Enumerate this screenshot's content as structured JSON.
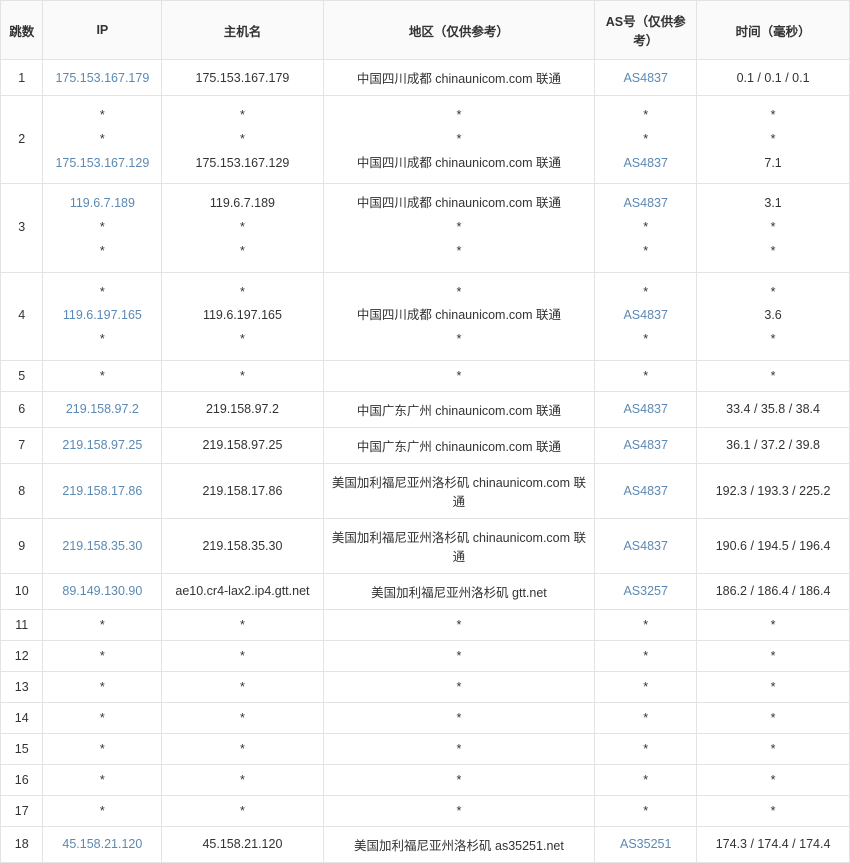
{
  "columns": {
    "hop": "跳数",
    "ip": "IP",
    "host": "主机名",
    "region": "地区（仅供参考）",
    "as": "AS号（仅供参考）",
    "time": "时间（毫秒）"
  },
  "rows": [
    {
      "hop": "1",
      "lines": [
        {
          "ip": "175.153.167.179",
          "ip_link": true,
          "host": "175.153.167.179",
          "region": "中国四川成都 chinaunicom.com 联通",
          "as": "AS4837",
          "as_link": true,
          "time": "0.1 / 0.1 / 0.1"
        }
      ]
    },
    {
      "hop": "2",
      "lines": [
        {
          "ip": "*",
          "ip_link": false,
          "host": "*",
          "region": "*",
          "as": "*",
          "as_link": false,
          "time": "*"
        },
        {
          "ip": "*",
          "ip_link": false,
          "host": "*",
          "region": "*",
          "as": "*",
          "as_link": false,
          "time": "*"
        },
        {
          "ip": "175.153.167.129",
          "ip_link": true,
          "host": "175.153.167.129",
          "region": "中国四川成都 chinaunicom.com 联通",
          "as": "AS4837",
          "as_link": true,
          "time": "7.1"
        }
      ]
    },
    {
      "hop": "3",
      "lines": [
        {
          "ip": "119.6.7.189",
          "ip_link": true,
          "host": "119.6.7.189",
          "region": "中国四川成都 chinaunicom.com 联通",
          "as": "AS4837",
          "as_link": true,
          "time": "3.1"
        },
        {
          "ip": "*",
          "ip_link": false,
          "host": "*",
          "region": "*",
          "as": "*",
          "as_link": false,
          "time": "*"
        },
        {
          "ip": "*",
          "ip_link": false,
          "host": "*",
          "region": "*",
          "as": "*",
          "as_link": false,
          "time": "*"
        }
      ]
    },
    {
      "hop": "4",
      "lines": [
        {
          "ip": "*",
          "ip_link": false,
          "host": "*",
          "region": "*",
          "as": "*",
          "as_link": false,
          "time": "*"
        },
        {
          "ip": "119.6.197.165",
          "ip_link": true,
          "host": "119.6.197.165",
          "region": "中国四川成都 chinaunicom.com 联通",
          "as": "AS4837",
          "as_link": true,
          "time": "3.6"
        },
        {
          "ip": "*",
          "ip_link": false,
          "host": "*",
          "region": "*",
          "as": "*",
          "as_link": false,
          "time": "*"
        }
      ]
    },
    {
      "hop": "5",
      "lines": [
        {
          "ip": "*",
          "ip_link": false,
          "host": "*",
          "region": "*",
          "as": "*",
          "as_link": false,
          "time": "*"
        }
      ]
    },
    {
      "hop": "6",
      "lines": [
        {
          "ip": "219.158.97.2",
          "ip_link": true,
          "host": "219.158.97.2",
          "region": "中国广东广州 chinaunicom.com 联通",
          "as": "AS4837",
          "as_link": true,
          "time": "33.4 / 35.8 / 38.4"
        }
      ]
    },
    {
      "hop": "7",
      "lines": [
        {
          "ip": "219.158.97.25",
          "ip_link": true,
          "host": "219.158.97.25",
          "region": "中国广东广州 chinaunicom.com 联通",
          "as": "AS4837",
          "as_link": true,
          "time": "36.1 / 37.2 / 39.8"
        }
      ]
    },
    {
      "hop": "8",
      "lines": [
        {
          "ip": "219.158.17.86",
          "ip_link": true,
          "host": "219.158.17.86",
          "region": "美国加利福尼亚州洛杉矶 chinaunicom.com 联通",
          "as": "AS4837",
          "as_link": true,
          "time": "192.3 / 193.3 / 225.2"
        }
      ]
    },
    {
      "hop": "9",
      "lines": [
        {
          "ip": "219.158.35.30",
          "ip_link": true,
          "host": "219.158.35.30",
          "region": "美国加利福尼亚州洛杉矶 chinaunicom.com 联通",
          "as": "AS4837",
          "as_link": true,
          "time": "190.6 / 194.5 / 196.4"
        }
      ]
    },
    {
      "hop": "10",
      "lines": [
        {
          "ip": "89.149.130.90",
          "ip_link": true,
          "host": "ae10.cr4-lax2.ip4.gtt.net",
          "region": "美国加利福尼亚州洛杉矶 gtt.net",
          "as": "AS3257",
          "as_link": true,
          "time": "186.2 / 186.4 / 186.4"
        }
      ]
    },
    {
      "hop": "11",
      "lines": [
        {
          "ip": "*",
          "ip_link": false,
          "host": "*",
          "region": "*",
          "as": "*",
          "as_link": false,
          "time": "*"
        }
      ]
    },
    {
      "hop": "12",
      "lines": [
        {
          "ip": "*",
          "ip_link": false,
          "host": "*",
          "region": "*",
          "as": "*",
          "as_link": false,
          "time": "*"
        }
      ]
    },
    {
      "hop": "13",
      "lines": [
        {
          "ip": "*",
          "ip_link": false,
          "host": "*",
          "region": "*",
          "as": "*",
          "as_link": false,
          "time": "*"
        }
      ]
    },
    {
      "hop": "14",
      "lines": [
        {
          "ip": "*",
          "ip_link": false,
          "host": "*",
          "region": "*",
          "as": "*",
          "as_link": false,
          "time": "*"
        }
      ]
    },
    {
      "hop": "15",
      "lines": [
        {
          "ip": "*",
          "ip_link": false,
          "host": "*",
          "region": "*",
          "as": "*",
          "as_link": false,
          "time": "*"
        }
      ]
    },
    {
      "hop": "16",
      "lines": [
        {
          "ip": "*",
          "ip_link": false,
          "host": "*",
          "region": "*",
          "as": "*",
          "as_link": false,
          "time": "*"
        }
      ]
    },
    {
      "hop": "17",
      "lines": [
        {
          "ip": "*",
          "ip_link": false,
          "host": "*",
          "region": "*",
          "as": "*",
          "as_link": false,
          "time": "*"
        }
      ]
    },
    {
      "hop": "18",
      "lines": [
        {
          "ip": "45.158.21.120",
          "ip_link": true,
          "host": "45.158.21.120",
          "region": "美国加利福尼亚州洛杉矶 as35251.net",
          "as": "AS35251",
          "as_link": true,
          "time": "174.3 / 174.4 / 174.4"
        }
      ]
    }
  ]
}
